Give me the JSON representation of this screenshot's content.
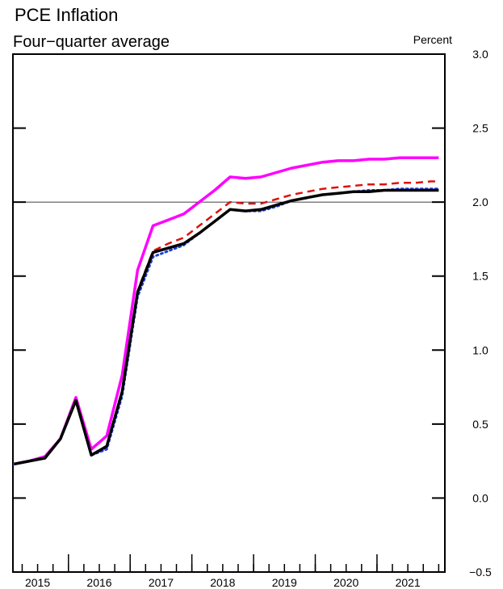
{
  "chart_data": {
    "type": "line",
    "title": "PCE Inflation",
    "subtitle": "Four−quarter average",
    "ylabel": "Percent",
    "ylim": [
      -0.5,
      3.0
    ],
    "xlim": [
      2014.6,
      2021.6
    ],
    "yticks": [
      -0.5,
      0.0,
      0.5,
      1.0,
      1.5,
      2.0,
      2.5,
      3.0
    ],
    "ytick_labels": [
      "−0.5",
      "0.0",
      "0.5",
      "1.0",
      "1.5",
      "2.0",
      "2.5",
      "3.0"
    ],
    "xtick_labels": [
      "2015",
      "2016",
      "2017",
      "2018",
      "2019",
      "2020",
      "2021"
    ],
    "xtick_positions": [
      2015,
      2016,
      2017,
      2018,
      2019,
      2020,
      2021
    ],
    "reference_line": 2.0,
    "grid": false,
    "legend": "none",
    "series": [
      {
        "color": "#ff00ff",
        "dash": "solid",
        "x": [
          2014.62,
          2014.87,
          2015.12,
          2015.37,
          2015.62,
          2015.87,
          2016.12,
          2016.37,
          2016.62,
          2016.87,
          2017.12,
          2017.37,
          2017.62,
          2017.87,
          2018.12,
          2018.37,
          2018.62,
          2018.87,
          2019.12,
          2019.37,
          2019.62,
          2019.87,
          2020.12,
          2020.37,
          2020.62,
          2020.87,
          2021.12,
          2021.37,
          2021.5
        ],
        "y": [
          0.23,
          0.25,
          0.28,
          0.4,
          0.68,
          0.33,
          0.42,
          0.83,
          1.54,
          1.84,
          1.88,
          1.92,
          2.0,
          2.08,
          2.17,
          2.16,
          2.17,
          2.2,
          2.23,
          2.25,
          2.27,
          2.28,
          2.28,
          2.29,
          2.29,
          2.3,
          2.3,
          2.3,
          2.3
        ]
      },
      {
        "color": "#e01010",
        "dash": "dashed",
        "x": [
          2014.62,
          2014.87,
          2015.12,
          2015.37,
          2015.62,
          2015.87,
          2016.12,
          2016.37,
          2016.62,
          2016.87,
          2017.12,
          2017.37,
          2017.62,
          2017.87,
          2018.12,
          2018.37,
          2018.62,
          2018.87,
          2019.12,
          2019.37,
          2019.62,
          2019.87,
          2020.12,
          2020.37,
          2020.62,
          2020.87,
          2021.12,
          2021.37,
          2021.5
        ],
        "y": [
          0.23,
          0.25,
          0.27,
          0.4,
          0.66,
          0.29,
          0.34,
          0.72,
          1.4,
          1.67,
          1.72,
          1.76,
          1.84,
          1.92,
          2.0,
          1.99,
          1.99,
          2.02,
          2.05,
          2.07,
          2.09,
          2.1,
          2.11,
          2.12,
          2.12,
          2.13,
          2.13,
          2.14,
          2.14
        ]
      },
      {
        "color": "#2040e0",
        "dash": "dotted",
        "x": [
          2014.62,
          2014.87,
          2015.12,
          2015.37,
          2015.62,
          2015.87,
          2016.12,
          2016.37,
          2016.62,
          2016.87,
          2017.12,
          2017.37,
          2017.62,
          2017.87,
          2018.12,
          2018.37,
          2018.62,
          2018.87,
          2019.12,
          2019.37,
          2019.62,
          2019.87,
          2020.12,
          2020.37,
          2020.62,
          2020.87,
          2021.12,
          2021.37,
          2021.5
        ],
        "y": [
          0.23,
          0.25,
          0.27,
          0.4,
          0.66,
          0.29,
          0.33,
          0.69,
          1.36,
          1.63,
          1.67,
          1.71,
          1.79,
          1.87,
          1.95,
          1.94,
          1.94,
          1.97,
          2.01,
          2.03,
          2.05,
          2.06,
          2.07,
          2.08,
          2.08,
          2.09,
          2.09,
          2.09,
          2.09
        ]
      },
      {
        "color": "#000000",
        "dash": "solid",
        "x": [
          2014.62,
          2014.87,
          2015.12,
          2015.37,
          2015.62,
          2015.87,
          2016.12,
          2016.37,
          2016.62,
          2016.87,
          2017.12,
          2017.37,
          2017.62,
          2017.87,
          2018.12,
          2018.37,
          2018.62,
          2018.87,
          2019.12,
          2019.37,
          2019.62,
          2019.87,
          2020.12,
          2020.37,
          2020.62,
          2020.87,
          2021.12,
          2021.37,
          2021.5
        ],
        "y": [
          0.23,
          0.25,
          0.27,
          0.4,
          0.66,
          0.29,
          0.35,
          0.72,
          1.39,
          1.66,
          1.69,
          1.72,
          1.79,
          1.87,
          1.95,
          1.94,
          1.95,
          1.98,
          2.01,
          2.03,
          2.05,
          2.06,
          2.07,
          2.07,
          2.08,
          2.08,
          2.08,
          2.08,
          2.08
        ]
      }
    ]
  }
}
